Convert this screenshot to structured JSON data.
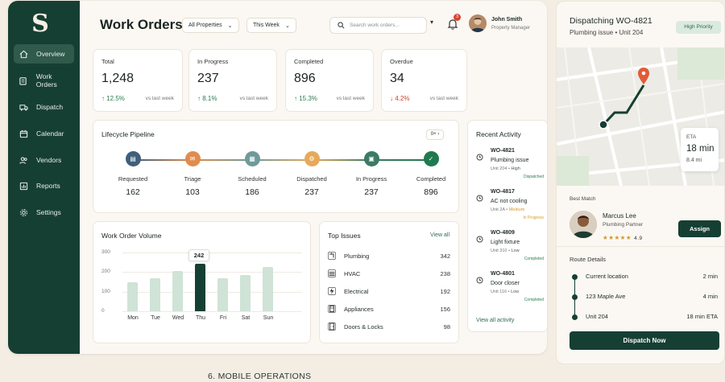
{
  "nav": {
    "items": [
      {
        "label": "Overview",
        "icon": "home-icon",
        "active": true
      },
      {
        "label": "Work Orders",
        "icon": "clipboard-icon"
      },
      {
        "label": "Dispatch",
        "icon": "truck-icon"
      },
      {
        "label": "Calendar",
        "icon": "calendar-icon"
      },
      {
        "label": "Vendors",
        "icon": "users-icon"
      },
      {
        "label": "Reports",
        "icon": "chart-icon"
      },
      {
        "label": "Settings",
        "icon": "gear-icon"
      }
    ]
  },
  "header": {
    "title": "Work Orders",
    "filter_property": "All Properties",
    "filter_period": "This Week",
    "search_placeholder": "Search work orders...",
    "notification_count": "3",
    "user_name": "John Smith",
    "user_role": "Property Manager"
  },
  "stats": [
    {
      "label": "Total",
      "value": "1,248",
      "delta": "↑ 12.5%",
      "trend": "up",
      "vs": "vs last week"
    },
    {
      "label": "In Progress",
      "value": "237",
      "delta": "↑ 8.1%",
      "trend": "up",
      "vs": "vs last week"
    },
    {
      "label": "Completed",
      "value": "896",
      "delta": "↑ 15.3%",
      "trend": "up",
      "vs": "vs last week"
    },
    {
      "label": "Overdue",
      "value": "34",
      "delta": "↓ 4.2%",
      "trend": "down",
      "vs": "vs last week"
    }
  ],
  "pipeline": {
    "title": "Lifecycle Pipeline",
    "toggle": "0+",
    "stages": [
      {
        "label": "Requested",
        "value": "162",
        "color": "#3f5f7a"
      },
      {
        "label": "Triage",
        "value": "103",
        "color": "#e08c4f"
      },
      {
        "label": "Scheduled",
        "value": "186",
        "color": "#6f9a9a"
      },
      {
        "label": "Dispatched",
        "value": "237",
        "color": "#e6a95b"
      },
      {
        "label": "In Progress",
        "value": "237",
        "color": "#3b7a63"
      },
      {
        "label": "Completed",
        "value": "896",
        "color": "#1f7a4f"
      }
    ]
  },
  "activity": {
    "title": "Recent Activity",
    "items": [
      {
        "id": "WO-4821",
        "title": "Plumbing issue",
        "unit": "Unit 204",
        "sep": " • ",
        "priority": "High",
        "priority_color": "#555",
        "status": "Dispatched",
        "status_color": "#2c7a51"
      },
      {
        "id": "WO-4817",
        "title": "AC not cooling",
        "unit": "Unit 2A",
        "sep": " • ",
        "priority": "Medium",
        "priority_color": "#d49a2a",
        "status": "In Progress",
        "status_color": "#d49a2a"
      },
      {
        "id": "WO-4809",
        "title": "Light fixture",
        "unit": "Unit 310",
        "sep": " • ",
        "priority": "Low",
        "priority_color": "#555",
        "status": "Completed",
        "status_color": "#2c7a51"
      },
      {
        "id": "WO-4801",
        "title": "Door closer",
        "unit": "Unit 116",
        "sep": " • ",
        "priority": "Low",
        "priority_color": "#555",
        "status": "Completed",
        "status_color": "#2c7a51"
      }
    ],
    "view_all": "View all activity"
  },
  "volume": {
    "title": "Work Order Volume",
    "tooltip": "242"
  },
  "chart_data": {
    "type": "bar",
    "categories": [
      "Mon",
      "Tue",
      "Wed",
      "Thu",
      "Fri",
      "Sat",
      "Sun"
    ],
    "values": [
      150,
      170,
      205,
      242,
      170,
      185,
      225
    ],
    "yticks": [
      "300",
      "200",
      "100",
      "0"
    ],
    "ylim": [
      0,
      300
    ],
    "highlight": "Thu",
    "title": "Work Order Volume"
  },
  "issues": {
    "title": "Top Issues",
    "view_all": "View all",
    "items": [
      {
        "name": "Plumbing",
        "count": "342",
        "icon": "faucet-icon"
      },
      {
        "name": "HVAC",
        "count": "238",
        "icon": "hvac-icon"
      },
      {
        "name": "Electrical",
        "count": "192",
        "icon": "bolt-icon"
      },
      {
        "name": "Appliances",
        "count": "156",
        "icon": "appliance-icon"
      },
      {
        "name": "Doors & Locks",
        "count": "98",
        "icon": "door-icon"
      }
    ]
  },
  "dispatch": {
    "title": "Dispatching WO-4821",
    "subtitle": "Plumbing issue • Unit 204",
    "priority": "High Priority",
    "eta_label": "ETA",
    "eta_value": "18 min",
    "eta_distance": "8.4 mi",
    "best_match_label": "Best Match",
    "worker_name": "Marcus Lee",
    "worker_role": "Plumbing Partner",
    "worker_stars": "★★★★★",
    "worker_rating": "4.9",
    "assign_label": "Assign",
    "route_title": "Route Details",
    "route": [
      {
        "name": "Current location",
        "time": "2 min"
      },
      {
        "name": "123 Maple Ave",
        "time": "4 min"
      },
      {
        "name": "Unit 204",
        "time": "18 min ETA"
      }
    ],
    "dispatch_label": "Dispatch Now"
  },
  "caption": "6. MOBILE OPERATIONS"
}
